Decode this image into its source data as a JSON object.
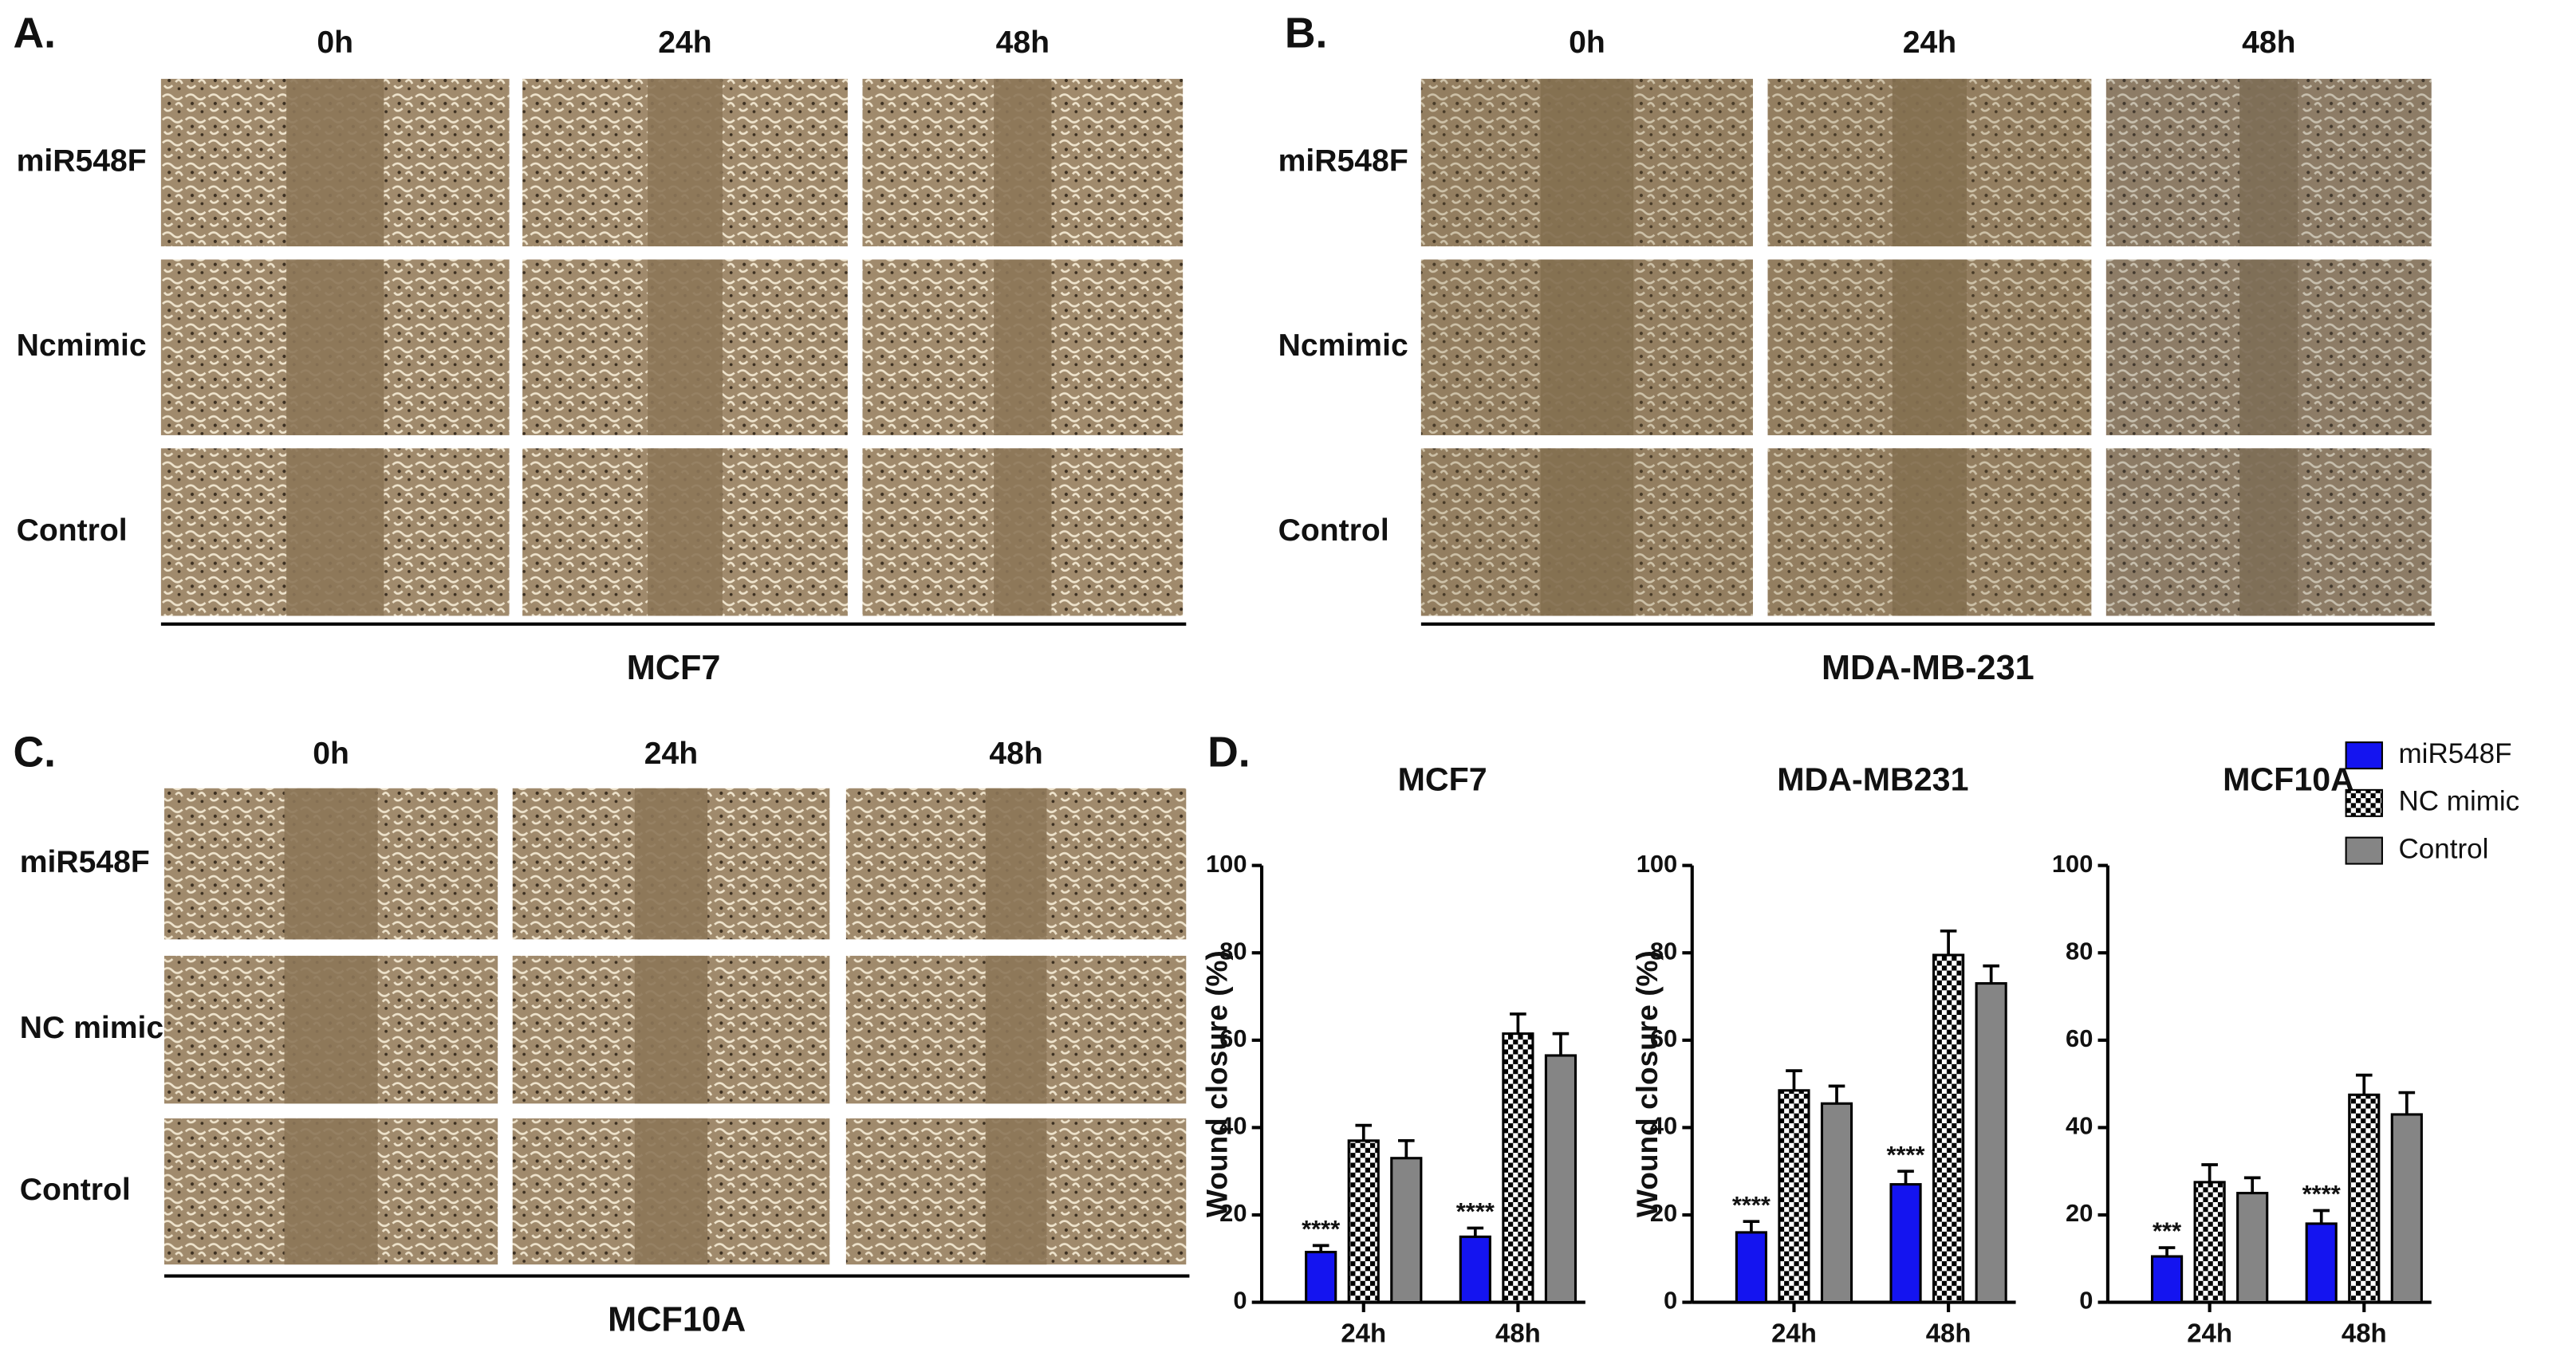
{
  "figure": {
    "panels": [
      {
        "label": "A.",
        "times": [
          "0h",
          "24h",
          "48h"
        ],
        "rows": [
          "miR548F",
          "Ncmimic",
          "Control"
        ],
        "cell_line": "MCF7"
      },
      {
        "label": "B.",
        "times": [
          "0h",
          "24h",
          "48h"
        ],
        "rows": [
          "miR548F",
          "Ncmimic",
          "Control"
        ],
        "cell_line": "MDA-MB-231"
      },
      {
        "label": "C.",
        "times": [
          "0h",
          "24h",
          "48h"
        ],
        "rows": [
          "miR548F",
          "NC mimic",
          "Control"
        ],
        "cell_line": "MCF10A"
      }
    ],
    "panel_d_label": "D."
  },
  "chart_data": [
    {
      "type": "bar",
      "title": "MCF7",
      "ylabel": "Wound closure (%)",
      "categories": [
        "24h",
        "48h"
      ],
      "series": [
        {
          "name": "miR548F",
          "color": "#1414f0",
          "values": [
            11.5,
            15
          ],
          "errors": [
            1.5,
            2
          ]
        },
        {
          "name": "NC mimic",
          "color": "#000000",
          "hatch": "checker",
          "values": [
            37,
            61.5
          ],
          "errors": [
            3.5,
            4.5
          ]
        },
        {
          "name": "Control",
          "color": "#858585",
          "values": [
            33,
            56.5
          ],
          "errors": [
            4,
            5
          ]
        }
      ],
      "annotations": [
        "****",
        "****"
      ],
      "ylim": [
        0,
        100
      ],
      "yticks": [
        0,
        20,
        40,
        60,
        80,
        100
      ]
    },
    {
      "type": "bar",
      "title": "MDA-MB231",
      "ylabel": "Wound closure (%)",
      "categories": [
        "24h",
        "48h"
      ],
      "series": [
        {
          "name": "miR548F",
          "color": "#1414f0",
          "values": [
            16,
            27
          ],
          "errors": [
            2.5,
            3
          ]
        },
        {
          "name": "NC mimic",
          "color": "#000000",
          "hatch": "checker",
          "values": [
            48.5,
            79.5
          ],
          "errors": [
            4.5,
            5.5
          ]
        },
        {
          "name": "Control",
          "color": "#858585",
          "values": [
            45.5,
            73
          ],
          "errors": [
            4,
            4
          ]
        }
      ],
      "annotations": [
        "****",
        "****"
      ],
      "ylim": [
        0,
        100
      ],
      "yticks": [
        0,
        20,
        40,
        60,
        80,
        100
      ]
    },
    {
      "type": "bar",
      "title": "MCF10A",
      "categories": [
        "24h",
        "48h"
      ],
      "series": [
        {
          "name": "miR548F",
          "color": "#1414f0",
          "values": [
            10.5,
            18
          ],
          "errors": [
            2,
            3
          ]
        },
        {
          "name": "NC mimic",
          "color": "#000000",
          "hatch": "checker",
          "values": [
            27.5,
            47.5
          ],
          "errors": [
            4,
            4.5
          ]
        },
        {
          "name": "Control",
          "color": "#858585",
          "values": [
            25,
            43
          ],
          "errors": [
            3.5,
            5
          ]
        }
      ],
      "annotations": [
        "***",
        "****"
      ],
      "ylim": [
        0,
        100
      ],
      "yticks": [
        0,
        20,
        40,
        60,
        80,
        100
      ]
    }
  ]
}
